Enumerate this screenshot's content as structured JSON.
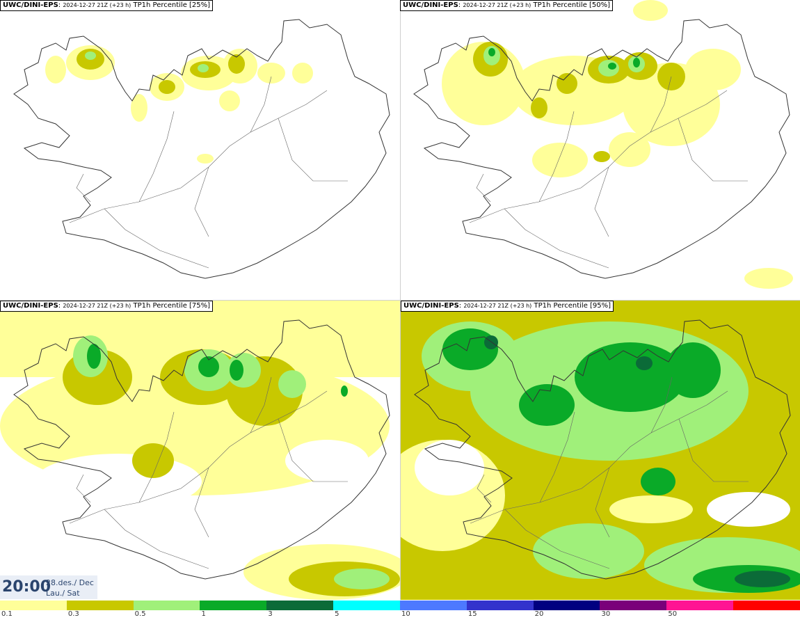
{
  "panels": [
    {
      "model": "UWC/DINI-EPS",
      "run": "2024-12-27 21Z (+23 h)",
      "label": "TP1h Percentile [25%]"
    },
    {
      "model": "UWC/DINI-EPS",
      "run": "2024-12-27 21Z (+23 h)",
      "label": "TP1h Percentile [50%]"
    },
    {
      "model": "UWC/DINI-EPS",
      "run": "2024-12-27 21Z (+23 h)",
      "label": "TP1h Percentile [75%]"
    },
    {
      "model": "UWC/DINI-EPS",
      "run": "2024-12-27 21Z (+23 h)",
      "label": "TP1h Percentile [95%]"
    }
  ],
  "time": {
    "hhmm": "20:00",
    "date": "28.des./ Dec",
    "day": "Lau./ Sat"
  },
  "legend": {
    "colors": [
      "#ffff99",
      "#c8c800",
      "#a0f07a",
      "#0aaa28",
      "#0b6b38",
      "#00ffff",
      "#4d79ff",
      "#3333cc",
      "#000080",
      "#7a007a",
      "#ff1493",
      "#ff0000"
    ],
    "labels": [
      "0.1",
      "0.3",
      "0.5",
      "1",
      "3",
      "5",
      "10",
      "15",
      "20",
      "30",
      "50"
    ]
  }
}
